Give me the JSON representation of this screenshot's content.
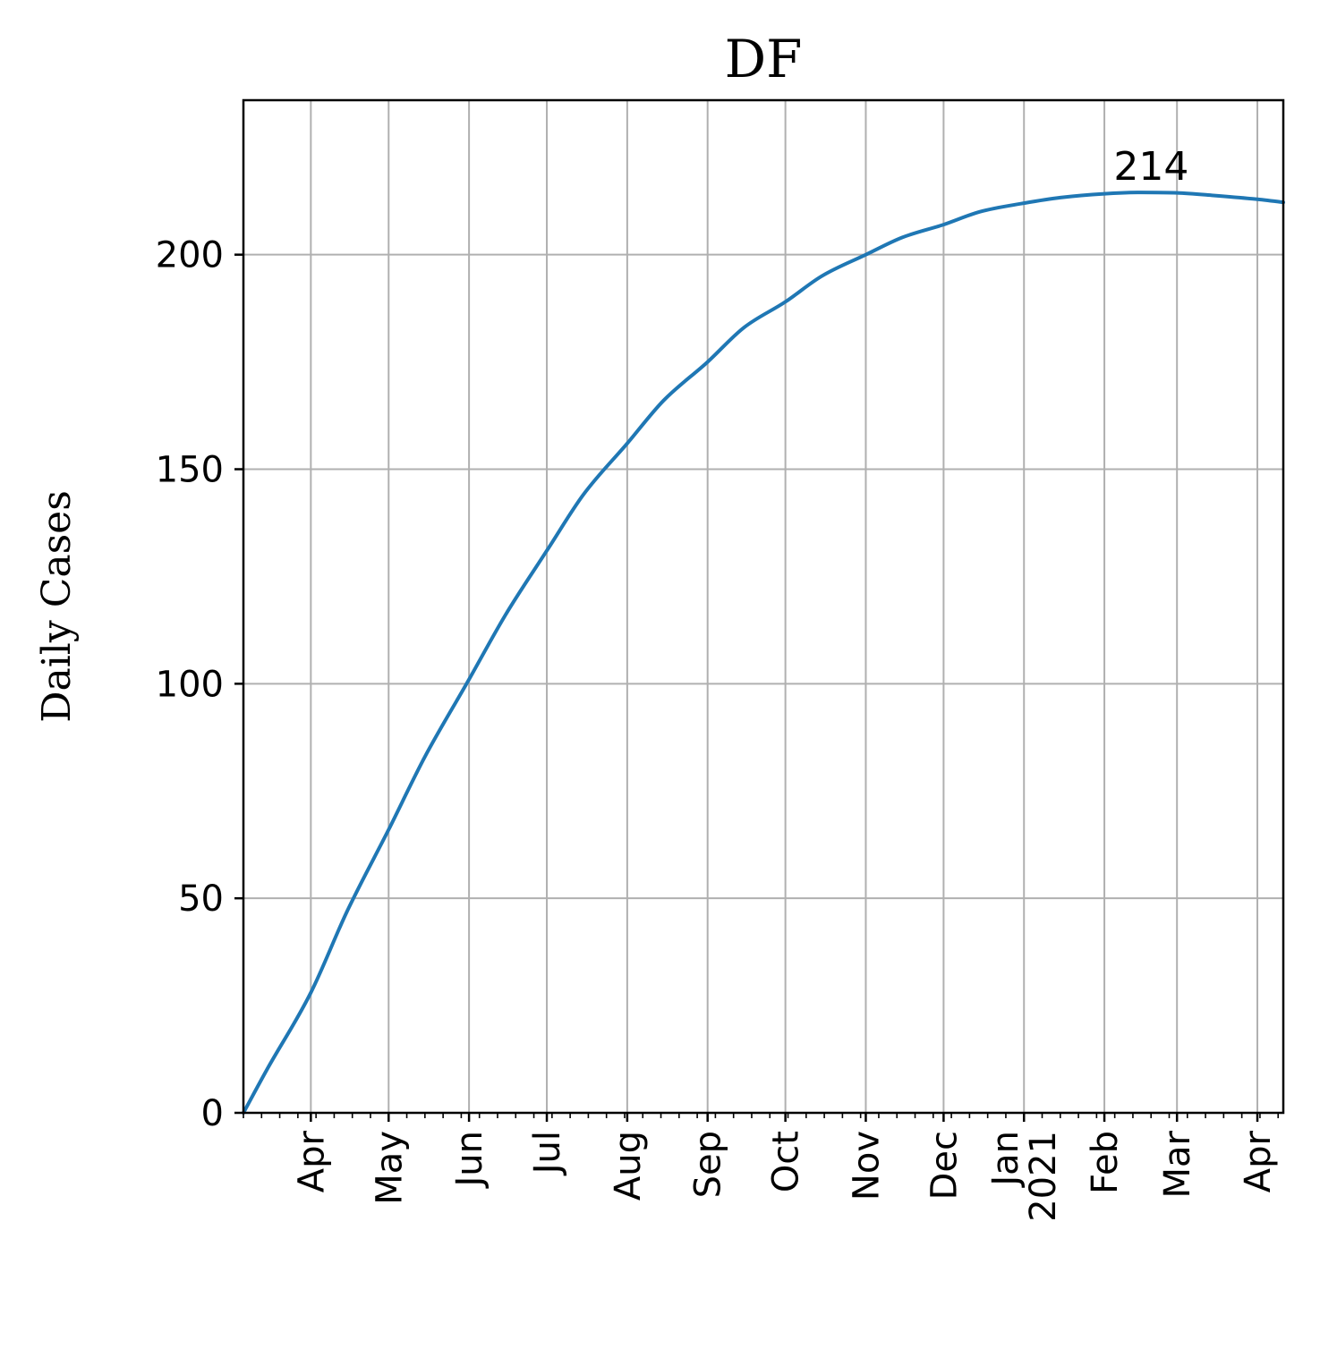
{
  "chart_data": {
    "type": "line",
    "title": "DF",
    "xlabel": "",
    "ylabel": "Daily Cases",
    "color": "#1f77b4",
    "grid": true,
    "x_range": [
      "2020-03-06",
      "2021-04-11"
    ],
    "ylim": [
      0,
      236
    ],
    "yticks": [
      0,
      50,
      100,
      150,
      200
    ],
    "xticks": [
      {
        "label": "Apr",
        "date": "2020-04-01"
      },
      {
        "label": "May",
        "date": "2020-05-01"
      },
      {
        "label": "Jun",
        "date": "2020-06-01"
      },
      {
        "label": "Jul",
        "date": "2020-07-01"
      },
      {
        "label": "Aug",
        "date": "2020-08-01"
      },
      {
        "label": "Sep",
        "date": "2020-09-01"
      },
      {
        "label": "Oct",
        "date": "2020-10-01"
      },
      {
        "label": "Nov",
        "date": "2020-11-01"
      },
      {
        "label": "Dec",
        "date": "2020-12-01"
      },
      {
        "label": "Jan\n2021",
        "date": "2021-01-01"
      },
      {
        "label": "Feb",
        "date": "2021-02-01"
      },
      {
        "label": "Mar",
        "date": "2021-03-01"
      },
      {
        "label": "Apr",
        "date": "2021-04-01"
      }
    ],
    "series": [
      {
        "name": "",
        "points": [
          [
            "2020-03-06",
            0
          ],
          [
            "2020-03-15",
            10
          ],
          [
            "2020-04-01",
            28
          ],
          [
            "2020-04-15",
            47
          ],
          [
            "2020-05-01",
            66
          ],
          [
            "2020-05-15",
            83
          ],
          [
            "2020-06-01",
            101
          ],
          [
            "2020-06-15",
            116
          ],
          [
            "2020-07-01",
            131
          ],
          [
            "2020-07-15",
            144
          ],
          [
            "2020-08-01",
            156
          ],
          [
            "2020-08-15",
            166
          ],
          [
            "2020-09-01",
            175
          ],
          [
            "2020-09-15",
            183
          ],
          [
            "2020-10-01",
            189
          ],
          [
            "2020-10-15",
            195
          ],
          [
            "2020-11-01",
            200
          ],
          [
            "2020-11-15",
            204
          ],
          [
            "2020-12-01",
            207
          ],
          [
            "2020-12-15",
            210
          ],
          [
            "2021-01-01",
            212
          ],
          [
            "2021-01-15",
            213.3
          ],
          [
            "2021-02-01",
            214.2
          ],
          [
            "2021-02-15",
            214.5
          ],
          [
            "2021-03-01",
            214.4
          ],
          [
            "2021-03-15",
            213.8
          ],
          [
            "2021-04-01",
            212.9
          ],
          [
            "2021-04-11",
            212.2
          ]
        ]
      }
    ],
    "annotations": [
      {
        "text": "214",
        "date": "2021-02-08",
        "value": 214.5
      }
    ]
  }
}
